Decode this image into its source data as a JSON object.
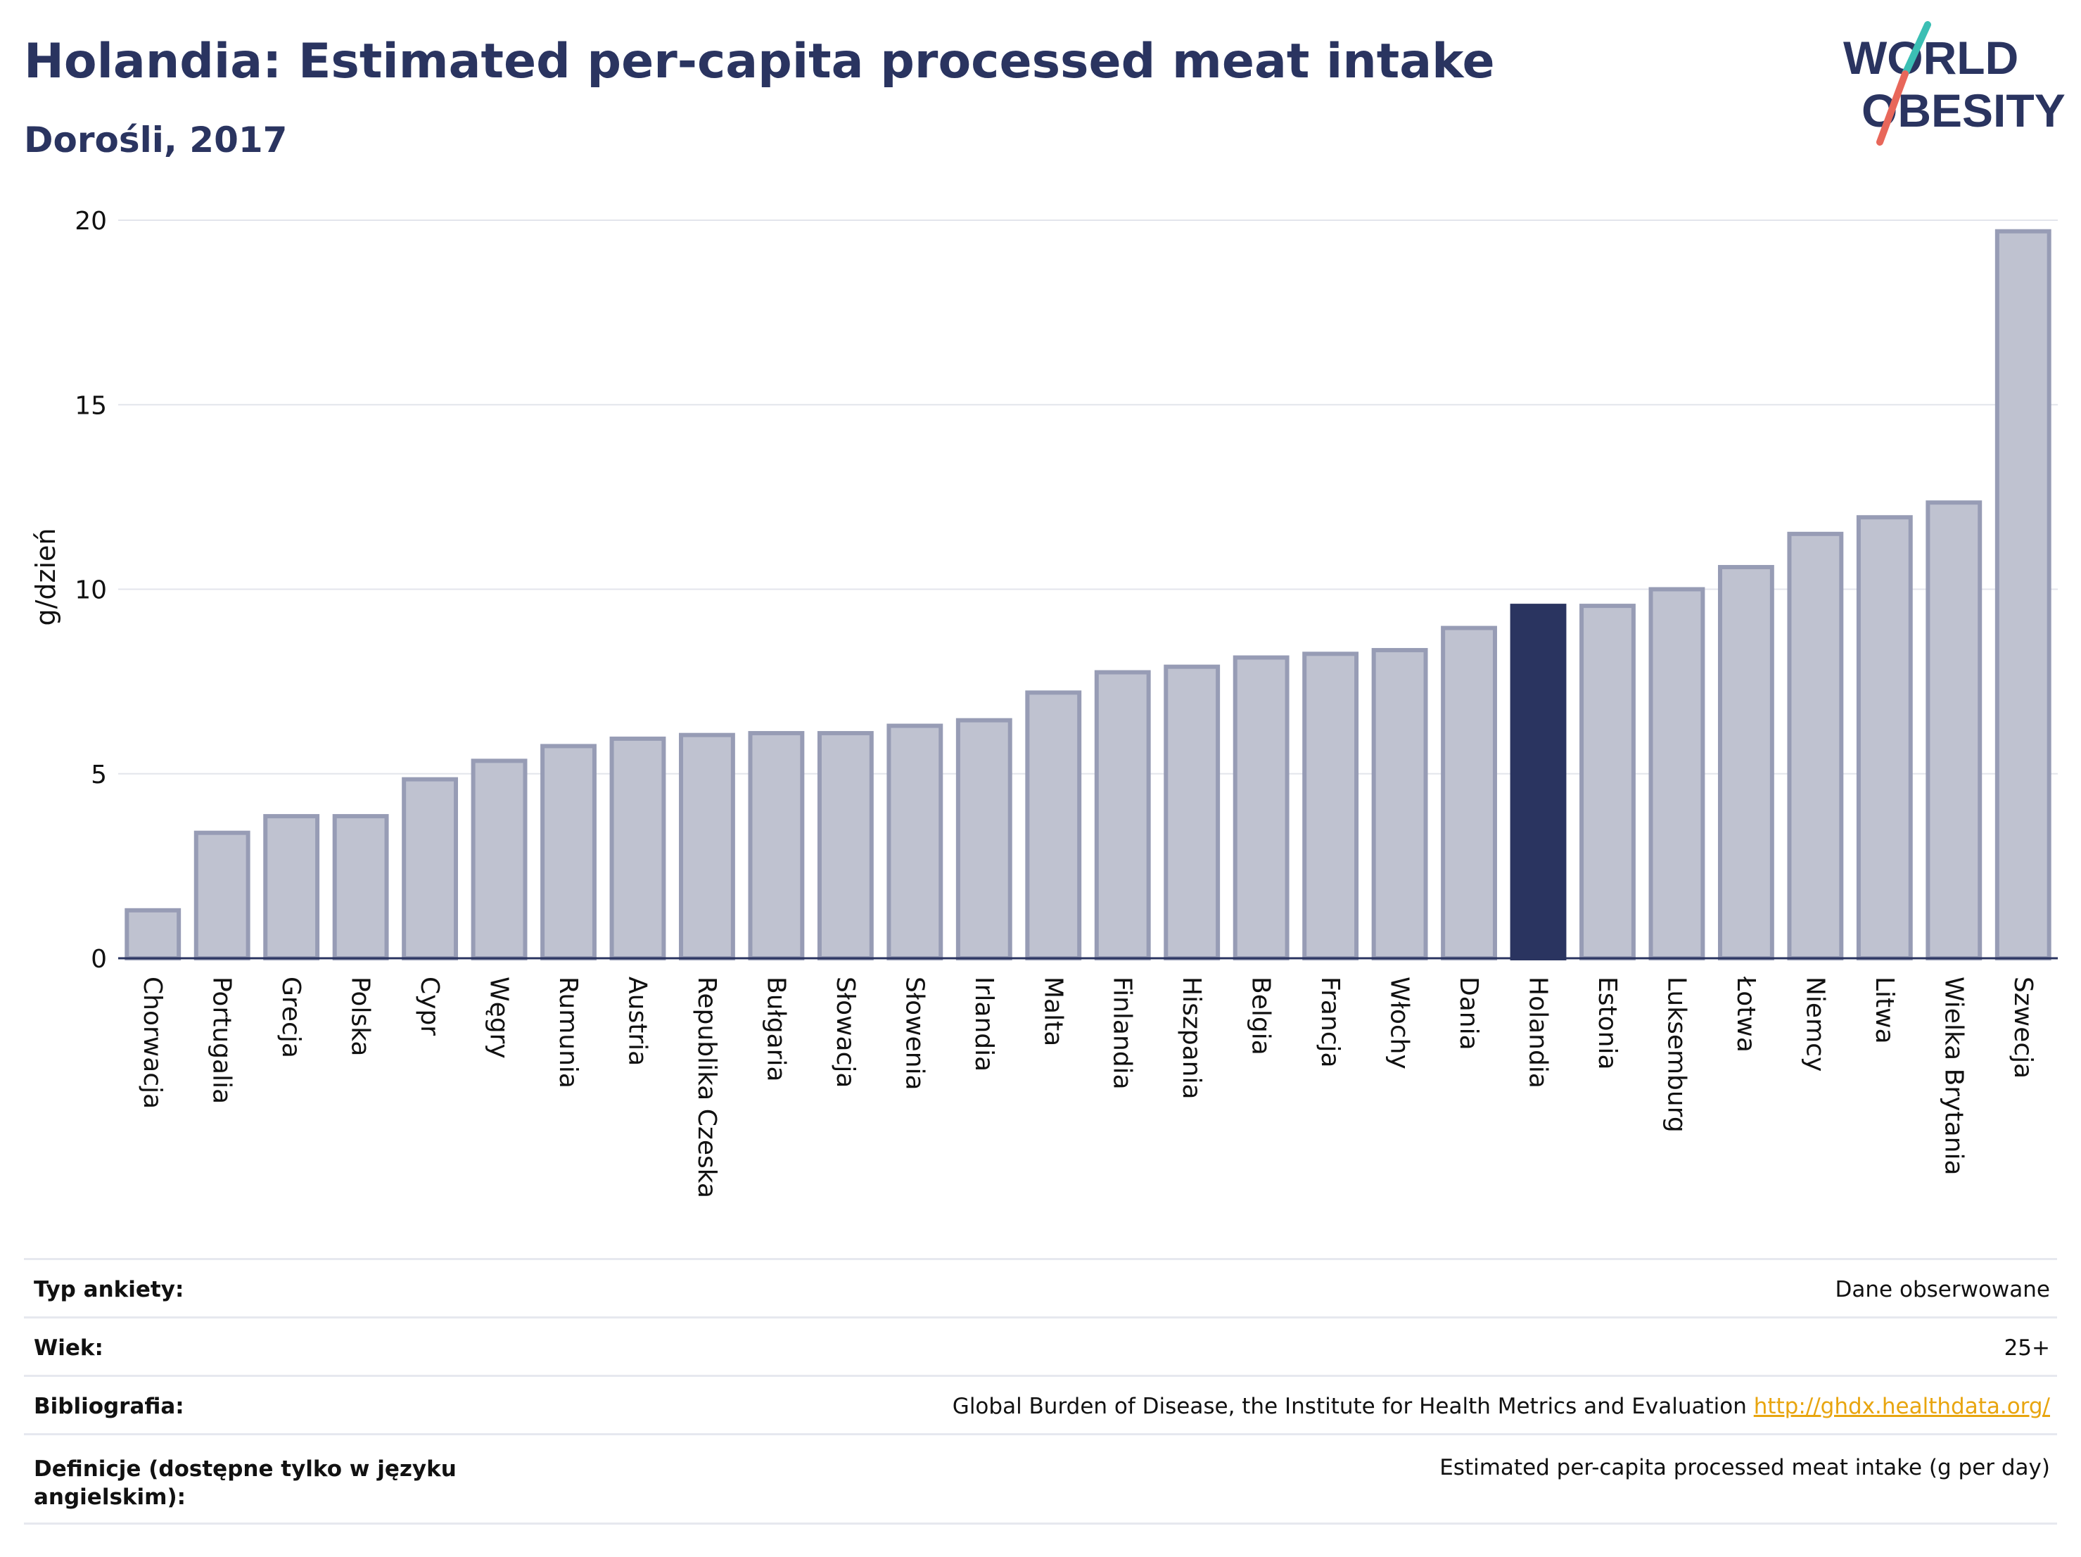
{
  "header": {
    "title": "Holandia: Estimated per-capita processed meat intake",
    "subtitle": "Dorośli, 2017"
  },
  "logo": {
    "line1": "WORLD",
    "line2": "OBESITY",
    "accent_colors": [
      "#3bbfb4",
      "#e8675a"
    ]
  },
  "colors": {
    "bar": "#bfc2d0",
    "bar_border": "#979cb5",
    "highlight": "#2a3460",
    "axis": "#2a3460",
    "grid": "#e3e5ec"
  },
  "chart_data": {
    "type": "bar",
    "ylabel": "g/dzień",
    "ylim": [
      0,
      20
    ],
    "yticks": [
      0,
      5,
      10,
      15,
      20
    ],
    "grid": true,
    "highlight": "Holandia",
    "categories": [
      "Chorwacja",
      "Portugalia",
      "Grecja",
      "Polska",
      "Cypr",
      "Węgry",
      "Rumunia",
      "Austria",
      "Republika Czeska",
      "Bułgaria",
      "Słowacja",
      "Słowenia",
      "Irlandia",
      "Malta",
      "Finlandia",
      "Hiszpania",
      "Belgia",
      "Francja",
      "Włochy",
      "Dania",
      "Holandia",
      "Estonia",
      "Luksemburg",
      "Łotwa",
      "Niemcy",
      "Litwa",
      "Wielka Brytania",
      "Szwecja"
    ],
    "values": [
      1.3,
      3.4,
      3.85,
      3.85,
      4.85,
      5.35,
      5.75,
      5.95,
      6.05,
      6.1,
      6.1,
      6.3,
      6.45,
      7.2,
      7.75,
      7.9,
      8.15,
      8.25,
      8.35,
      8.95,
      9.55,
      9.55,
      10.0,
      10.6,
      11.5,
      11.95,
      12.35,
      19.7
    ]
  },
  "info": {
    "survey_label": "Typ ankiety:",
    "survey_value": "Dane obserwowane",
    "age_label": "Wiek:",
    "age_value": "25+",
    "bib_label": "Bibliografia:",
    "bib_value": "Global Burden of Disease, the Institute for Health Metrics and Evaluation",
    "bib_link": "http://ghdx.healthdata.org/",
    "def_label": "Definicje (dostępne tylko w języku angielskim):",
    "def_value": "Estimated per-capita processed meat intake (g per day)"
  }
}
